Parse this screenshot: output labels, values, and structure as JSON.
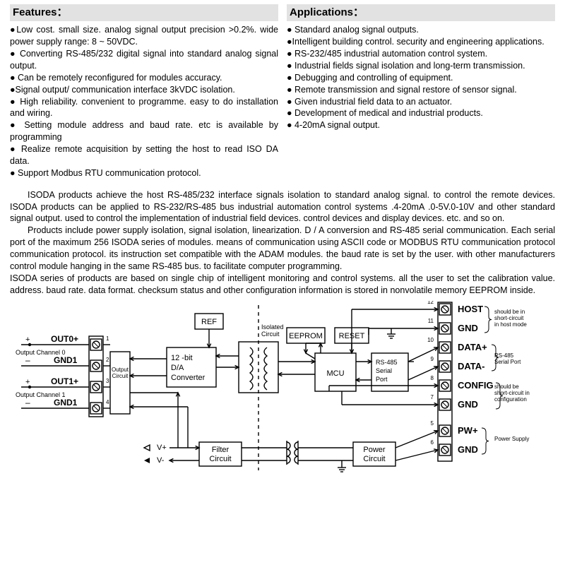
{
  "features": {
    "heading": "Features：",
    "text": "●Low cost. small size. analog signal output precision >0.2%. wide power supply range: 8 ~ 50VDC.\n● Converting RS-485/232 digital signal into standard analog signal output.\n● Can be remotely reconfigured for modules accuracy.\n●Signal output/ communication interface 3kVDC isolation.\n● High reliability. convenient to programme. easy to do installation and wiring.\n● Setting module address and baud rate. etc is available by programming\n● Realize remote acquisition by setting the host to read ISO DA data.\n● Support Modbus RTU communication protocol."
  },
  "applications": {
    "heading": "Applications：",
    "text": "● Standard analog signal outputs.\n●Intelligent building control. security and engineering applications.\n● RS-232/485 industrial automation control system.\n● Industrial fields signal isolation and long-term transmission.\n● Debugging and controlling of equipment.\n● Remote transmission and signal restore of sensor signal.\n● Given industrial field data to an actuator.\n● Development of medical and industrial products.\n● 4-20mA signal output."
  },
  "body": {
    "p1": "ISODA products achieve the host RS-485/232 interface signals isolation to standard analog signal. to control the remote devices. ISODA products can be applied to RS-232/RS-485 bus industrial automation control systems .4-20mA .0-5V.0-10V and other standard signal output. used to control the implementation of industrial field devices. control devices and display devices. etc. and so on.",
    "p2": "Products include power supply isolation, signal isolation, linearization. D / A conversion and RS-485 serial communication. Each serial port of the maximum 256 ISODA series of modules. means of communication using ASCII code or MODBUS RTU communication protocol communication protocol. its instruction set compatible with the ADAM modules. the baud rate is set by the user. with other manufacturers control module hanging in the same RS-485 bus. to facilitate computer programming.",
    "p3": "ISODA series of products are based on single chip of intelligent monitoring and control systems. all the user to set the calibration value. address. baud rate. data format. checksum status and other configuration information is stored in nonvolatile memory EEPROM inside."
  },
  "diagram": {
    "colors": {
      "stroke": "#000000",
      "fill_bg": "#ffffff",
      "hatch": "#888888"
    },
    "stroke_width": 1.4,
    "font": {
      "label": 11,
      "small": 9,
      "tiny": 8
    },
    "left_labels": {
      "out0": "OUT0+",
      "gnd1a": "GND1",
      "out1": "OUT1+",
      "gnd1b": "GND1",
      "ch0": "Output Channel 0",
      "ch1": "Output Channel 1",
      "output_circuit": "Output\nCircuit"
    },
    "pins_left": [
      "1",
      "2",
      "3",
      "4"
    ],
    "blocks": {
      "ref": "REF",
      "dac": "12 -bit\nD/A\nConverter",
      "isolated": "Isolated\nCircuit",
      "eeprom": "EEPROM",
      "reset": "RESET",
      "mcu": "MCU",
      "rs485": "RS-485\nSerial\nPort",
      "filter": "Filter\nCircuit",
      "power": "Power\nCircuit"
    },
    "vplus": "V+",
    "vminus": "V-",
    "right_terminals": [
      {
        "num": "12",
        "name": "HOST",
        "sub": "should be in\nshort-circuit\nin host mode"
      },
      {
        "num": "11",
        "name": "GND",
        "sub": ""
      },
      {
        "num": "10",
        "name": "DATA+",
        "sub": "RS-485\nSerial Port"
      },
      {
        "num": "9",
        "name": "DATA-",
        "sub": ""
      },
      {
        "num": "8",
        "name": "CONFIG",
        "sub": "should be\nshort-circuit in\nconfiguration"
      },
      {
        "num": "7",
        "name": "GND",
        "sub": ""
      },
      {
        "num": "5",
        "name": "PW+",
        "sub": "Power Supply"
      },
      {
        "num": "6",
        "name": "GND",
        "sub": ""
      }
    ]
  }
}
